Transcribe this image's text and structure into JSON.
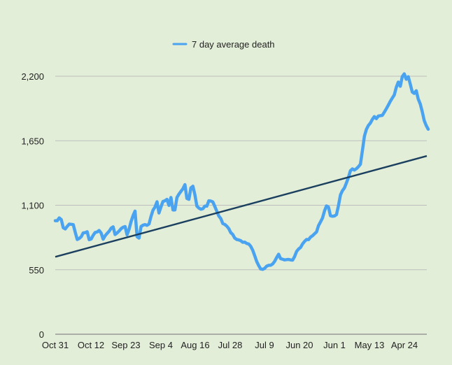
{
  "chart_data": {
    "type": "line",
    "legend": {
      "position": "top-center",
      "entries": [
        "7 day average  death"
      ]
    },
    "x_tick_labels": [
      "Oct 31",
      "Oct 12",
      "Sep 23",
      "Sep 4",
      "Aug 16",
      "Jul 28",
      "Jul 9",
      "Jun 20",
      "Jun 1",
      "May 13",
      "Apr 24"
    ],
    "ylim": [
      0,
      2200
    ],
    "y_ticks": [
      {
        "value": 0,
        "label": "0"
      },
      {
        "value": 550,
        "label": "550"
      },
      {
        "value": 1100,
        "label": "1,100"
      },
      {
        "value": 1650,
        "label": "1,650"
      },
      {
        "value": 2200,
        "label": "2,200"
      }
    ],
    "grid": "horizontal",
    "colors": {
      "series": "#4aa3f0",
      "trendline": "#1b3f5f",
      "grid": "#bdbdbd",
      "background": "#e3eed8"
    },
    "series": [
      {
        "name": "7 day average  death",
        "x_start": "Oct 31",
        "x_end": "Apr 17",
        "values": [
          968,
          968,
          992,
          977,
          908,
          898,
          920,
          939,
          937,
          935,
          870,
          808,
          816,
          832,
          864,
          866,
          874,
          806,
          812,
          844,
          868,
          872,
          885,
          862,
          810,
          840,
          860,
          878,
          904,
          916,
          850,
          864,
          880,
          900,
          912,
          918,
          848,
          896,
          960,
          1012,
          1050,
          832,
          820,
          918,
          930,
          935,
          928,
          940,
          1004,
          1058,
          1084,
          1130,
          1034,
          1086,
          1132,
          1138,
          1150,
          1098,
          1166,
          1060,
          1060,
          1166,
          1194,
          1218,
          1240,
          1276,
          1158,
          1150,
          1248,
          1262,
          1190,
          1092,
          1076,
          1066,
          1070,
          1092,
          1092,
          1138,
          1136,
          1128,
          1090,
          1048,
          1008,
          986,
          944,
          936,
          922,
          900,
          866,
          850,
          820,
          808,
          804,
          798,
          784,
          786,
          774,
          770,
          750,
          716,
          670,
          620,
          586,
          556,
          553,
          562,
          580,
          588,
          588,
          599,
          621,
          654,
          682,
          644,
          640,
          634,
          636,
          638,
          634,
          632,
          662,
          706,
          726,
          740,
          770,
          792,
          808,
          806,
          828,
          840,
          856,
          872,
          926,
          958,
          990,
          1052,
          1094,
          1084,
          1010,
          1006,
          1008,
          1020,
          1096,
          1188,
          1224,
          1248,
          1290,
          1338,
          1394,
          1410,
          1400,
          1412,
          1428,
          1450,
          1564,
          1688,
          1746,
          1780,
          1800,
          1832,
          1856,
          1838,
          1860,
          1864,
          1866,
          1894,
          1922,
          1954,
          1986,
          2014,
          2040,
          2106,
          2150,
          2114,
          2196,
          2220,
          2174,
          2196,
          2134,
          2066,
          2054,
          2076,
          2006,
          1964,
          1900,
          1822,
          1780,
          1748
        ]
      },
      {
        "name": "",
        "kind": "linear trendline",
        "values": [
          660,
          1520
        ]
      }
    ]
  }
}
